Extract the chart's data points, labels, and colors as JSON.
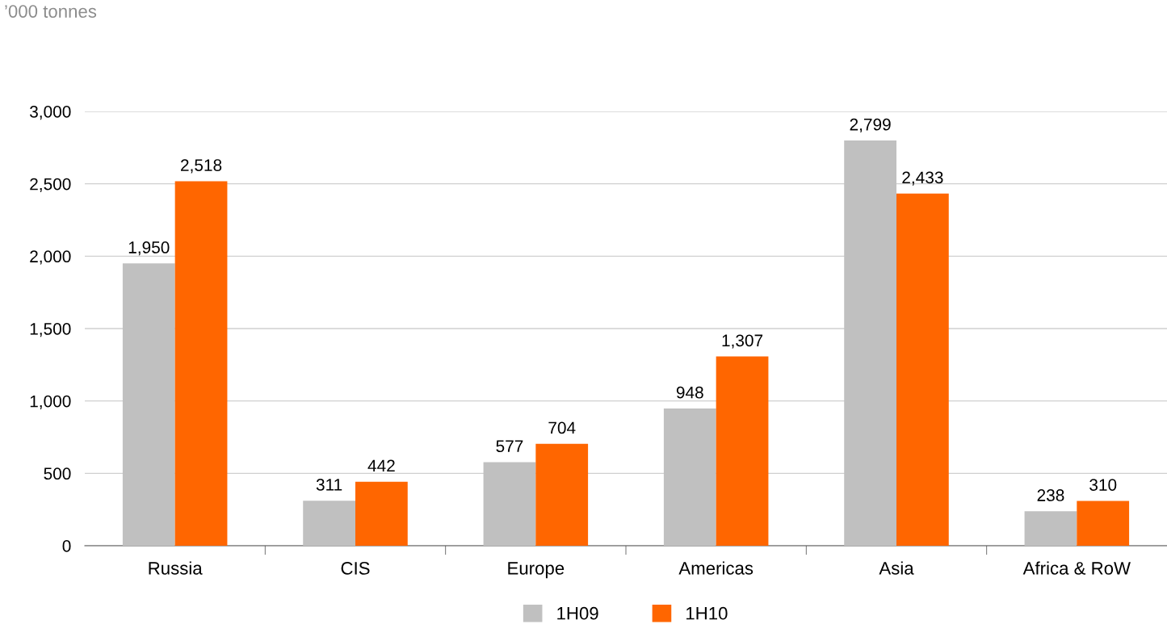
{
  "chart_data": {
    "type": "bar",
    "ylabel": "’000 tonnes",
    "categories": [
      "Russia",
      "CIS",
      "Europe",
      "Americas",
      "Asia",
      "Africa & RoW"
    ],
    "series": [
      {
        "name": "1H09",
        "color": "#c0c0c0",
        "values": [
          1950,
          311,
          577,
          948,
          2799,
          238
        ],
        "value_labels": [
          "1,950",
          "311",
          "577",
          "948",
          "2,799",
          "238"
        ]
      },
      {
        "name": "1H10",
        "color": "#ff6600",
        "values": [
          2518,
          442,
          704,
          1307,
          2433,
          310
        ],
        "value_labels": [
          "2,518",
          "442",
          "704",
          "1,307",
          "2,433",
          "310"
        ]
      }
    ],
    "ylim": [
      0,
      3000
    ],
    "yticks": [
      {
        "value": 0,
        "label": "0"
      },
      {
        "value": 500,
        "label": "500"
      },
      {
        "value": 1000,
        "label": "1,000"
      },
      {
        "value": 1500,
        "label": "1,500"
      },
      {
        "value": 2000,
        "label": "2,000"
      },
      {
        "value": 2500,
        "label": "2,500"
      },
      {
        "value": 3000,
        "label": "3,000"
      }
    ],
    "grid": "y",
    "legend": "bottom"
  }
}
